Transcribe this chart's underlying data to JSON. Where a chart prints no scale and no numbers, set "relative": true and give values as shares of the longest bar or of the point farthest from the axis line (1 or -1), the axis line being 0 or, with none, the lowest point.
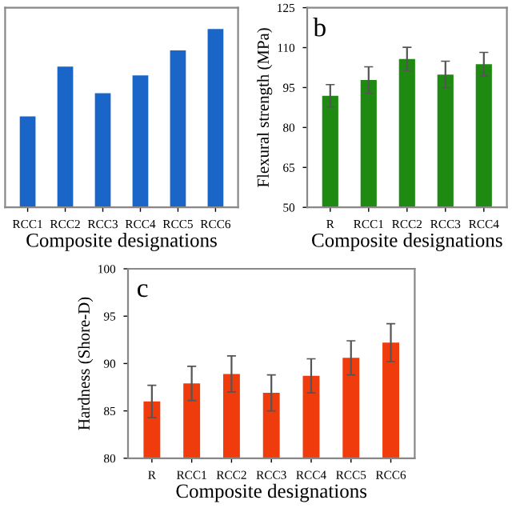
{
  "chart_data": [
    {
      "type": "bar",
      "relative": true,
      "categories": [
        "RCC1",
        "RCC2",
        "RCC3",
        "RCC4",
        "RCC5",
        "RCC6"
      ],
      "xlabel": "Composite designations",
      "tick_labels": "x",
      "series": [
        {
          "color": "#1a66c8",
          "values": [
            0.51,
            0.79,
            0.64,
            0.74,
            0.88,
            1.0
          ]
        }
      ]
    },
    {
      "type": "bar",
      "categories": [
        "R",
        "RCC1",
        "RCC2",
        "RCC3",
        "RCC4"
      ],
      "xlabel": "Composite designations",
      "ylabel": "Flexural strength (MPa)",
      "annotations": [
        "b"
      ],
      "ylim": [
        50,
        125
      ],
      "yticks": [
        50,
        65,
        80,
        95,
        110,
        125
      ],
      "series": [
        {
          "color": "#1f8a12",
          "values": [
            91.9,
            97.8,
            105.7,
            99.9,
            103.8
          ],
          "errors": [
            4.2,
            5,
            4.4,
            5,
            4.4
          ]
        }
      ]
    },
    {
      "type": "bar",
      "categories": [
        "R",
        "RCC1",
        "RCC2",
        "RCC3",
        "RCC4",
        "RCC5",
        "RCC6"
      ],
      "xlabel": "Composite designations",
      "ylabel": "Hardness (Shore-D)",
      "annotations": [
        "c"
      ],
      "ylim": [
        80,
        100
      ],
      "yticks": [
        80,
        85,
        90,
        95,
        100
      ],
      "series": [
        {
          "color": "#f03c0c",
          "values": [
            86.0,
            87.9,
            88.9,
            86.9,
            88.7,
            90.6,
            92.2
          ],
          "errors": [
            1.7,
            1.8,
            1.9,
            1.9,
            1.8,
            1.8,
            2.0
          ]
        }
      ]
    }
  ]
}
